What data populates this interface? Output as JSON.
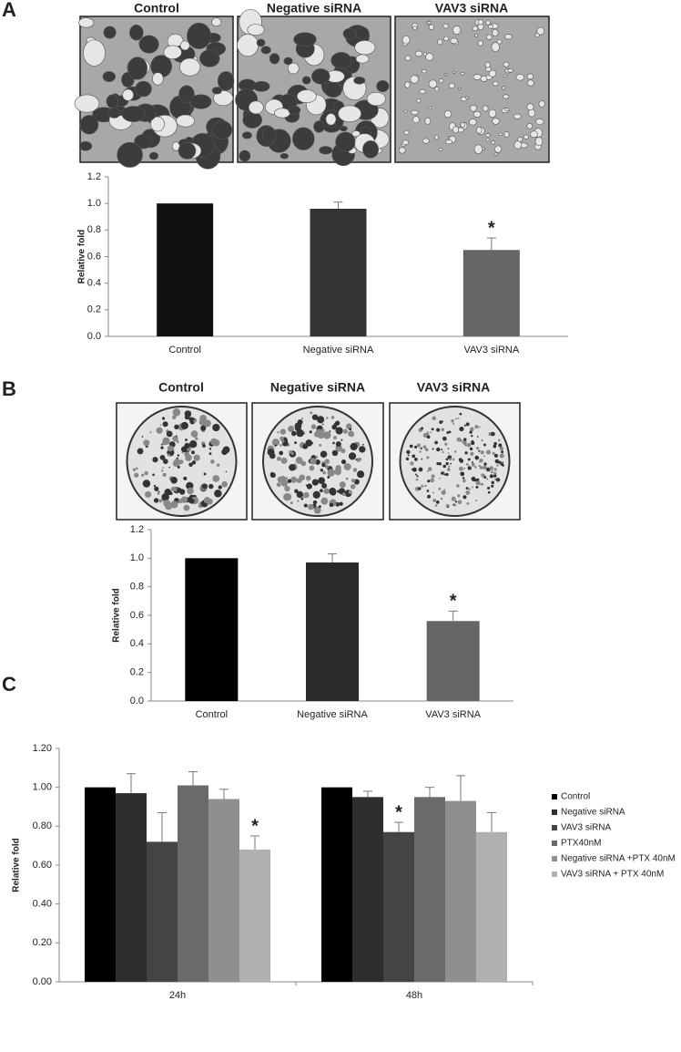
{
  "panels": [
    {
      "label": "A",
      "image_captions": [
        "Control",
        "Negative siRNA",
        "VAV3 siRNA"
      ]
    },
    {
      "label": "B",
      "image_captions": [
        "Control",
        "Negative siRNA",
        "VAV3 siRNA"
      ]
    },
    {
      "label": "C"
    }
  ],
  "chart_data": [
    {
      "type": "bar",
      "y_label": "Relative fold",
      "categories": [
        "Control",
        "Negative siRNA",
        "VAV3 siRNA"
      ],
      "values": [
        1.0,
        0.96,
        0.65
      ],
      "errors": [
        null,
        0.05,
        0.09
      ],
      "annotations": [
        null,
        null,
        "*"
      ],
      "colors": [
        "#111111",
        "#333333",
        "#666666"
      ],
      "ylim": [
        0,
        1.2
      ],
      "yticks": [
        {
          "value": 0,
          "label": "0.0"
        },
        0.2,
        0.4,
        0.6,
        0.8,
        {
          "value": 1,
          "label": "1.0"
        },
        1.2
      ]
    },
    {
      "type": "bar",
      "y_label": "Relative fold",
      "categories": [
        "Control",
        "Negative siRNA",
        "VAV3 siRNA"
      ],
      "values": [
        1.0,
        0.97,
        0.56
      ],
      "errors": [
        null,
        0.06,
        0.07
      ],
      "annotations": [
        null,
        null,
        "*"
      ],
      "colors": [
        "#000000",
        "#2a2a2a",
        "#666666"
      ],
      "ylim": [
        0,
        1.2
      ],
      "yticks": [
        {
          "value": 0,
          "label": "0.0"
        },
        0.2,
        0.4,
        0.6,
        0.8,
        {
          "value": 1,
          "label": "1.0"
        },
        1.2
      ]
    },
    {
      "type": "grouped_bar",
      "y_label": "Relative fold",
      "categories": [
        "24h",
        "48h"
      ],
      "series": [
        {
          "name": "Control",
          "color": "#000000",
          "values": [
            1.0,
            1.0
          ],
          "errors": [
            null,
            null
          ],
          "annotations": [
            null,
            null
          ]
        },
        {
          "name": "Negative siRNA",
          "color": "#2e2e2e",
          "values": [
            0.97,
            0.95
          ],
          "errors": [
            0.1,
            0.03
          ],
          "annotations": [
            null,
            null
          ]
        },
        {
          "name": "VAV3 siRNA",
          "color": "#444444",
          "values": [
            0.72,
            0.77
          ],
          "errors": [
            0.15,
            0.05
          ],
          "annotations": [
            null,
            "*"
          ]
        },
        {
          "name": "PTX40nM",
          "color": "#6a6a6a",
          "values": [
            1.01,
            0.95
          ],
          "errors": [
            0.07,
            0.05
          ],
          "annotations": [
            null,
            null
          ]
        },
        {
          "name": "Negative siRNA +PTX 40nM",
          "color": "#8f8f8f",
          "values": [
            0.94,
            0.93
          ],
          "errors": [
            0.05,
            0.13
          ],
          "annotations": [
            null,
            null
          ]
        },
        {
          "name": "VAV3 siRNA + PTX 40nM",
          "color": "#b0b0b0",
          "values": [
            0.68,
            0.77
          ],
          "errors": [
            0.07,
            0.1
          ],
          "annotations": [
            "*",
            null
          ]
        }
      ],
      "ylim": [
        0,
        1.2
      ],
      "yticks": [
        {
          "value": 0,
          "label": "0.00"
        },
        {
          "value": 0.2,
          "label": "0.20"
        },
        {
          "value": 0.4,
          "label": "0.40"
        },
        {
          "value": 0.6,
          "label": "0.60"
        },
        {
          "value": 0.8,
          "label": "0.80"
        },
        {
          "value": 1,
          "label": "1.00"
        },
        {
          "value": 1.2,
          "label": "1.20"
        }
      ],
      "legend": "right"
    }
  ]
}
